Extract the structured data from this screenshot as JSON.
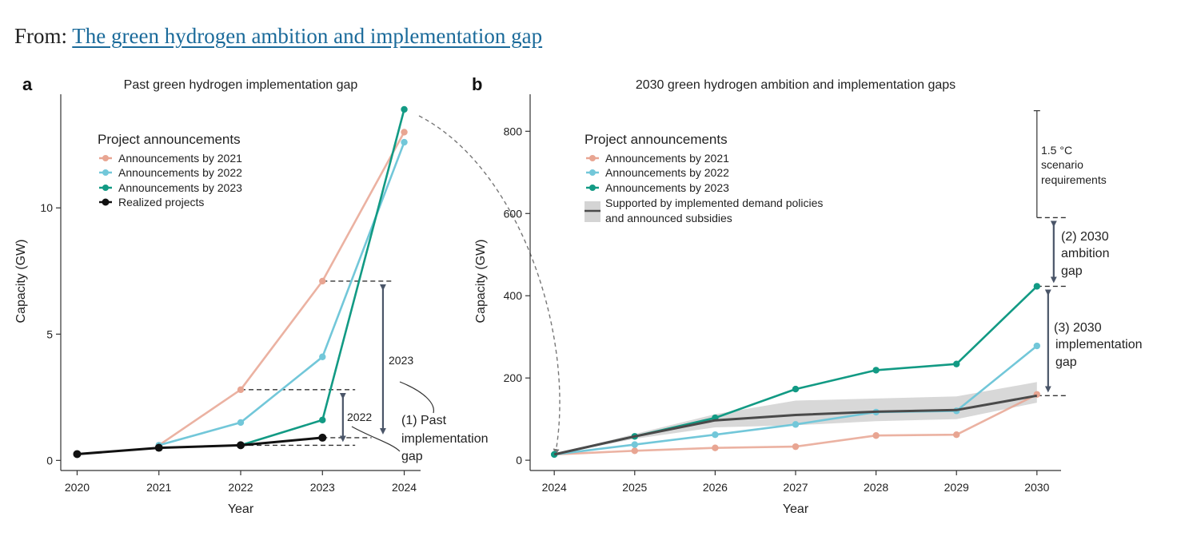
{
  "header": {
    "prefix": "From:",
    "link_text": "The green hydrogen ambition and implementation gap"
  },
  "colors": {
    "ann2021": "#e8a592",
    "ann2022": "#72c7d9",
    "ann2023": "#129a84",
    "realized": "#111111",
    "supported": "#4a4a4a",
    "band": "#d4d4d4",
    "gap_arrow": "#4a5568"
  },
  "chart_data": [
    {
      "panel": "a",
      "type": "line",
      "title": "Past green hydrogen implementation gap",
      "xlabel": "Year",
      "ylabel": "Capacity (GW)",
      "xlim": [
        2019.8,
        2024.2
      ],
      "ylim": [
        -0.4,
        14.5
      ],
      "xticks": [
        2020,
        2021,
        2022,
        2023,
        2024
      ],
      "yticks": [
        0,
        5,
        10
      ],
      "legend_title": "Project announcements",
      "series": [
        {
          "name": "Announcements by 2021",
          "key": "ann2021",
          "x": [
            2021,
            2022,
            2023,
            2024
          ],
          "y": [
            0.6,
            2.8,
            7.1,
            13.0
          ]
        },
        {
          "name": "Announcements by 2022",
          "key": "ann2022",
          "x": [
            2021,
            2022,
            2023,
            2024
          ],
          "y": [
            0.6,
            1.5,
            4.1,
            12.6
          ]
        },
        {
          "name": "Announcements by 2023",
          "key": "ann2023",
          "x": [
            2022,
            2023,
            2024
          ],
          "y": [
            0.6,
            1.6,
            13.9
          ]
        },
        {
          "name": "Realized projects",
          "key": "realized",
          "x": [
            2020,
            2021,
            2022,
            2023
          ],
          "y": [
            0.25,
            0.5,
            0.6,
            0.9
          ]
        }
      ],
      "annotations": {
        "gap_2022_label": "2022",
        "gap_2023_label": "2023",
        "gap_text_1": "(1) Past",
        "gap_text_2": "implementation",
        "gap_text_3": "gap"
      }
    },
    {
      "panel": "b",
      "type": "line",
      "title": "2030 green hydrogen ambition and implementation gaps",
      "xlabel": "Year",
      "ylabel": "Capacity (GW)",
      "xlim": [
        2023.7,
        2030.3
      ],
      "ylim": [
        -25,
        890
      ],
      "xticks": [
        2024,
        2025,
        2026,
        2027,
        2028,
        2029,
        2030
      ],
      "yticks": [
        0,
        200,
        400,
        600,
        800
      ],
      "legend_title": "Project announcements",
      "series": [
        {
          "name": "Announcements by 2021",
          "key": "ann2021",
          "x": [
            2024,
            2025,
            2026,
            2027,
            2028,
            2029,
            2030
          ],
          "y": [
            14,
            23,
            30,
            33,
            60,
            62,
            160
          ]
        },
        {
          "name": "Announcements by 2022",
          "key": "ann2022",
          "x": [
            2024,
            2025,
            2026,
            2027,
            2028,
            2029,
            2030
          ],
          "y": [
            14,
            38,
            62,
            87,
            117,
            120,
            278
          ]
        },
        {
          "name": "Announcements by 2023",
          "key": "ann2023",
          "x": [
            2024,
            2025,
            2026,
            2027,
            2028,
            2029,
            2030
          ],
          "y": [
            14,
            58,
            103,
            173,
            219,
            234,
            423
          ]
        },
        {
          "name": "Supported by implemented demand policies",
          "name2": "and announced subsidies",
          "key": "supported",
          "x": [
            2024,
            2025,
            2026,
            2027,
            2028,
            2029,
            2030
          ],
          "y": [
            14,
            58,
            97,
            110,
            118,
            122,
            157
          ],
          "lower": [
            14,
            52,
            80,
            85,
            95,
            100,
            140
          ],
          "upper": [
            14,
            64,
            112,
            145,
            150,
            155,
            190
          ]
        }
      ],
      "annotations": {
        "scenario_1": "1.5 °C",
        "scenario_2": "scenario",
        "scenario_3": "requirements",
        "scenario_top": 850,
        "scenario_bottom": 590,
        "ambition_1": "(2) 2030",
        "ambition_2": "ambition",
        "ambition_3": "gap",
        "impl_1": "(3) 2030",
        "impl_2": "implementation",
        "impl_3": "gap"
      }
    }
  ]
}
